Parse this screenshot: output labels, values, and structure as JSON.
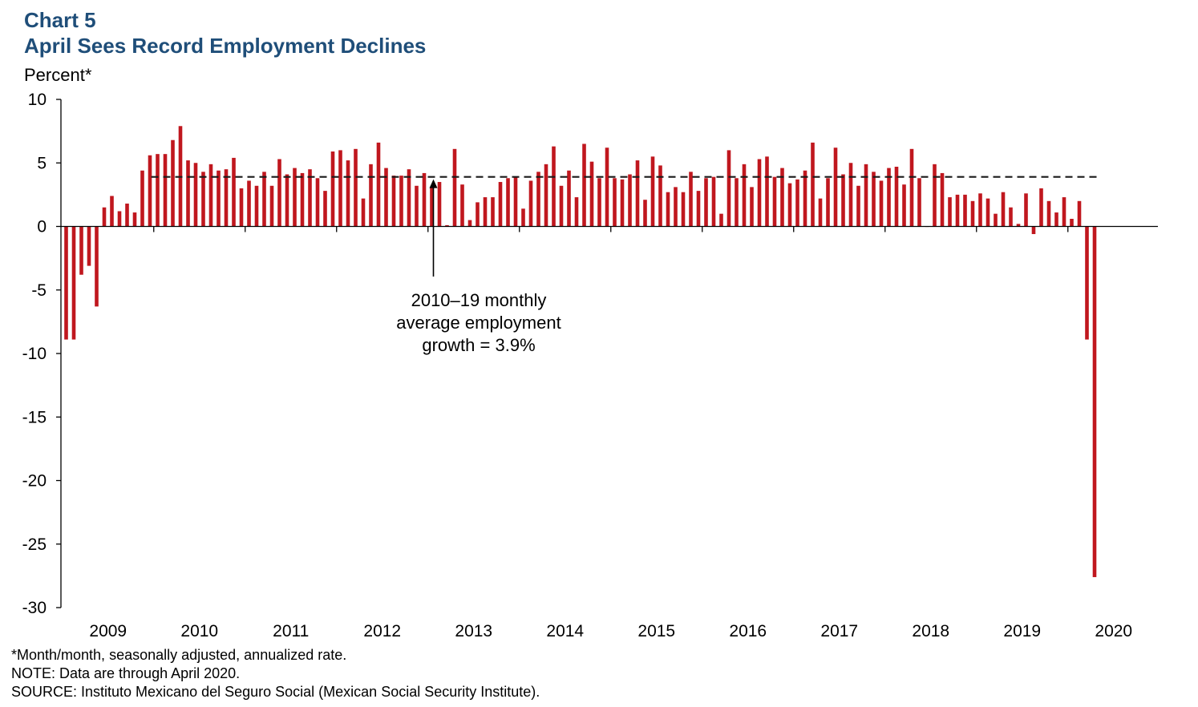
{
  "header": {
    "chart_number": "Chart 5",
    "title": "April Sees Record Employment Declines",
    "y_unit": "Percent*"
  },
  "footnotes": [
    "*Month/month, seasonally adjusted, annualized  rate.",
    "NOTE: Data are through April 2020.",
    "SOURCE: Instituto Mexicano del Seguro Social (Mexican Social Security Institute)."
  ],
  "annotation": {
    "lines": [
      "2010–19 monthly",
      "average employment",
      "growth = 3.9%"
    ],
    "points_to_date": "2013-01"
  },
  "colors": {
    "bar": "#c0171e",
    "average_line": "#1a1a1a",
    "title": "#1f4e79"
  },
  "chart_data": {
    "type": "bar",
    "ylabel": "Percent*",
    "ylim": [
      -30,
      10
    ],
    "yticks": [
      10,
      5,
      0,
      -5,
      -10,
      -15,
      -20,
      -25,
      -30
    ],
    "xtick_labels": [
      "2009",
      "2010",
      "2011",
      "2012",
      "2013",
      "2014",
      "2015",
      "2016",
      "2017",
      "2018",
      "2019",
      "2020"
    ],
    "x_start": "2009-01",
    "x_end": "2020-04",
    "grid": false,
    "legend": "none",
    "reference_line": {
      "label": "2010–19 monthly average employment growth = 3.9%",
      "value": 3.9,
      "from": "2010-01",
      "to": "2020-04",
      "style": "dashed"
    },
    "series": [
      {
        "values": [
          -8.9,
          -8.9,
          -3.8,
          -3.1,
          -6.3,
          1.5,
          2.4,
          1.2,
          1.8,
          1.1,
          4.4,
          5.6,
          5.7,
          5.7,
          6.8,
          7.9,
          5.2,
          5.0,
          4.3,
          4.9,
          4.4,
          4.5,
          5.4,
          3.0,
          3.6,
          3.2,
          4.3,
          3.2,
          5.3,
          4.1,
          4.6,
          4.2,
          4.5,
          3.8,
          2.8,
          5.9,
          6.0,
          5.2,
          6.1,
          2.2,
          4.9,
          6.6,
          4.6,
          4.0,
          4.0,
          4.5,
          3.2,
          4.2,
          3.1,
          3.5,
          0.1,
          6.1,
          3.3,
          0.5,
          1.9,
          2.3,
          2.3,
          3.5,
          3.8,
          3.9,
          1.4,
          3.6,
          4.3,
          4.9,
          6.3,
          3.2,
          4.4,
          2.3,
          6.5,
          5.1,
          3.8,
          6.2,
          3.8,
          3.7,
          4.1,
          5.2,
          2.1,
          5.5,
          4.8,
          2.7,
          3.1,
          2.7,
          4.3,
          2.8,
          3.8,
          3.9,
          1.0,
          6.0,
          3.8,
          4.9,
          3.1,
          5.3,
          5.5,
          3.9,
          4.6,
          3.4,
          3.7,
          4.4,
          6.6,
          2.2,
          3.8,
          6.2,
          4.1,
          5.0,
          3.2,
          4.9,
          4.3,
          3.6,
          4.6,
          4.7,
          3.3,
          6.1,
          3.8,
          0.0,
          4.9,
          4.2,
          2.3,
          2.5,
          2.5,
          2.0,
          2.6,
          2.2,
          1.0,
          2.7,
          1.5,
          0.2,
          2.6,
          -0.6,
          3.0,
          2.0,
          1.1,
          2.3,
          0.6,
          2.0,
          -8.9,
          -27.6
        ]
      }
    ]
  }
}
